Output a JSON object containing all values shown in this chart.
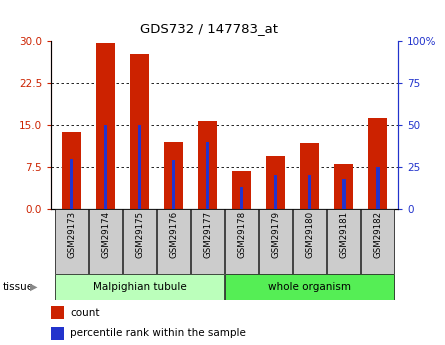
{
  "title": "GDS732 / 147783_at",
  "samples": [
    "GSM29173",
    "GSM29174",
    "GSM29175",
    "GSM29176",
    "GSM29177",
    "GSM29178",
    "GSM29179",
    "GSM29180",
    "GSM29181",
    "GSM29182"
  ],
  "count_values": [
    13.8,
    29.7,
    27.8,
    12.0,
    15.8,
    6.8,
    9.5,
    11.8,
    8.0,
    16.3
  ],
  "percentile_values": [
    30,
    50,
    50,
    29,
    40,
    13,
    20,
    20,
    18,
    25
  ],
  "count_color": "#cc2200",
  "percentile_color": "#2233cc",
  "left_ylim": [
    0,
    30
  ],
  "right_ylim": [
    0,
    100
  ],
  "left_yticks": [
    0,
    7.5,
    15,
    22.5,
    30
  ],
  "right_yticks": [
    0,
    25,
    50,
    75,
    100
  ],
  "right_ytick_labels": [
    "0",
    "25",
    "50",
    "75",
    "100%"
  ],
  "tissue_groups": [
    {
      "label": "Malpighian tubule",
      "start": 0,
      "end": 5,
      "color": "#bbffbb"
    },
    {
      "label": "whole organism",
      "start": 5,
      "end": 10,
      "color": "#55ee55"
    }
  ],
  "legend_count_label": "count",
  "legend_percentile_label": "percentile rank within the sample",
  "tissue_label": "tissue",
  "bar_width": 0.55,
  "bg_color": "#ffffff",
  "left_tick_color": "#cc2200",
  "right_tick_color": "#2233cc"
}
